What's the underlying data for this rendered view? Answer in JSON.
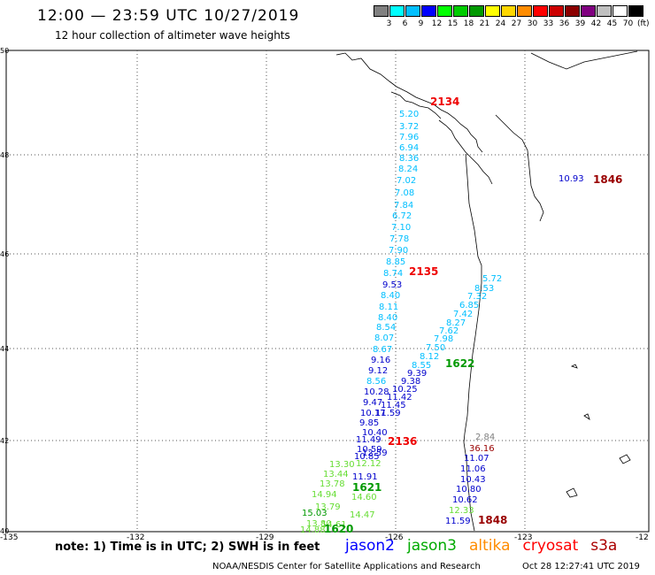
{
  "header": {
    "title": "12:00 — 23:59 UTC 10/27/2019",
    "subtitle": "12 hour collection of altimeter wave heights"
  },
  "legend": {
    "unit": "(ft)",
    "bins": [
      {
        "color": "#808080",
        "label": "3"
      },
      {
        "color": "#00ffff",
        "label": "6"
      },
      {
        "color": "#00bfff",
        "label": "9"
      },
      {
        "color": "#0000ff",
        "label": "12"
      },
      {
        "color": "#00ff00",
        "label": "15"
      },
      {
        "color": "#00cc00",
        "label": "18"
      },
      {
        "color": "#009900",
        "label": "21"
      },
      {
        "color": "#ffff00",
        "label": "24"
      },
      {
        "color": "#ffd700",
        "label": "27"
      },
      {
        "color": "#ff8c00",
        "label": "30"
      },
      {
        "color": "#ff0000",
        "label": "33"
      },
      {
        "color": "#cc0000",
        "label": "36"
      },
      {
        "color": "#8b0000",
        "label": "39"
      },
      {
        "color": "#800080",
        "label": "42"
      },
      {
        "color": "#c0c0c0",
        "label": "45"
      },
      {
        "color": "#ffffff",
        "label": "70"
      },
      {
        "color": "#000000",
        "label": ""
      }
    ]
  },
  "axes": {
    "lat_labels": [
      "50",
      "48",
      "46",
      "44",
      "42",
      "40"
    ],
    "lon_labels": [
      "-135",
      "-132",
      "-129",
      "-126",
      "-123",
      "-12"
    ]
  },
  "observations": [
    {
      "v": "5.20",
      "c": "#00bfff"
    },
    {
      "v": "3.72",
      "c": "#00bfff"
    },
    {
      "v": "7.96",
      "c": "#00bfff"
    },
    {
      "v": "6.94",
      "c": "#00bfff"
    },
    {
      "v": "8.36",
      "c": "#00bfff"
    },
    {
      "v": "8.24",
      "c": "#00bfff"
    },
    {
      "v": "7.02",
      "c": "#00bfff"
    },
    {
      "v": "7.08",
      "c": "#00bfff"
    },
    {
      "v": "7.84",
      "c": "#00bfff"
    },
    {
      "v": "6.72",
      "c": "#00bfff"
    },
    {
      "v": "7.10",
      "c": "#00bfff"
    },
    {
      "v": "7.78",
      "c": "#00bfff"
    },
    {
      "v": "7.90",
      "c": "#00bfff"
    },
    {
      "v": "8.85",
      "c": "#00bfff"
    },
    {
      "v": "8.74",
      "c": "#00bfff"
    },
    {
      "v": "9.53",
      "c": "#0000cc"
    },
    {
      "v": "8.40",
      "c": "#00bfff"
    },
    {
      "v": "8.11",
      "c": "#00bfff"
    },
    {
      "v": "8.40",
      "c": "#00bfff"
    },
    {
      "v": "8.54",
      "c": "#00bfff"
    },
    {
      "v": "8.07",
      "c": "#00bfff"
    },
    {
      "v": "8.67",
      "c": "#00bfff"
    },
    {
      "v": "9.16",
      "c": "#0000cc"
    },
    {
      "v": "9.12",
      "c": "#0000cc"
    },
    {
      "v": "8.56",
      "c": "#00bfff"
    },
    {
      "v": "10.28",
      "c": "#0000cc"
    },
    {
      "v": "9.47",
      "c": "#0000cc"
    },
    {
      "v": "10.17",
      "c": "#0000cc"
    },
    {
      "v": "9.85",
      "c": "#0000cc"
    },
    {
      "v": "10.40",
      "c": "#0000cc"
    },
    {
      "v": "11.49",
      "c": "#0000cc"
    },
    {
      "v": "10.85",
      "c": "#0000cc"
    },
    {
      "v": "11.91",
      "c": "#0000cc"
    },
    {
      "v": "5.72",
      "c": "#00bfff"
    },
    {
      "v": "8.53",
      "c": "#00bfff"
    },
    {
      "v": "7.32",
      "c": "#00bfff"
    },
    {
      "v": "6.85",
      "c": "#00bfff"
    },
    {
      "v": "7.42",
      "c": "#00bfff"
    },
    {
      "v": "8.27",
      "c": "#00bfff"
    },
    {
      "v": "7.62",
      "c": "#00bfff"
    },
    {
      "v": "7.98",
      "c": "#00bfff"
    },
    {
      "v": "7.50",
      "c": "#00bfff"
    },
    {
      "v": "8.12",
      "c": "#00bfff"
    },
    {
      "v": "8.55",
      "c": "#00bfff"
    },
    {
      "v": "9.39",
      "c": "#0000cc"
    },
    {
      "v": "9.38",
      "c": "#0000cc"
    },
    {
      "v": "10.25",
      "c": "#0000cc"
    },
    {
      "v": "11.42",
      "c": "#0000cc"
    },
    {
      "v": "11.45",
      "c": "#0000cc"
    },
    {
      "v": "11.59",
      "c": "#0000cc"
    },
    {
      "v": "10.59",
      "c": "#0000cc"
    },
    {
      "v": "12.59",
      "c": "#0000cc"
    },
    {
      "v": "13.30",
      "c": "#66dd33"
    },
    {
      "v": "12.12",
      "c": "#66dd33"
    },
    {
      "v": "13.44",
      "c": "#66dd33"
    },
    {
      "v": "13.78",
      "c": "#66dd33"
    },
    {
      "v": "14.94",
      "c": "#66dd33"
    },
    {
      "v": "14.60",
      "c": "#66dd33"
    },
    {
      "v": "13.79",
      "c": "#66dd33"
    },
    {
      "v": "15.03",
      "c": "#009900"
    },
    {
      "v": "14.47",
      "c": "#66dd33"
    },
    {
      "v": "13.80",
      "c": "#66dd33"
    },
    {
      "v": "14.61",
      "c": "#66dd33"
    },
    {
      "v": "14.88",
      "c": "#66dd33"
    },
    {
      "v": "2.84",
      "c": "#808080"
    },
    {
      "v": "36.16",
      "c": "#990000"
    },
    {
      "v": "11.07",
      "c": "#0000cc"
    },
    {
      "v": "11.06",
      "c": "#0000cc"
    },
    {
      "v": "10.43",
      "c": "#0000cc"
    },
    {
      "v": "10.80",
      "c": "#0000cc"
    },
    {
      "v": "10.62",
      "c": "#0000cc"
    },
    {
      "v": "12.33",
      "c": "#66dd33"
    },
    {
      "v": "11.59",
      "c": "#0000cc"
    },
    {
      "v": "10.93",
      "c": "#0000cc"
    }
  ],
  "pass_labels": [
    {
      "text": "2134",
      "c": "#ee0000"
    },
    {
      "text": "2135",
      "c": "#ee0000"
    },
    {
      "text": "2136",
      "c": "#ee0000"
    },
    {
      "text": "1622",
      "c": "#009900"
    },
    {
      "text": "1621",
      "c": "#009900"
    },
    {
      "text": "1620",
      "c": "#009900"
    },
    {
      "text": "1848",
      "c": "#990000"
    },
    {
      "text": "1846",
      "c": "#990000"
    }
  ],
  "notes": {
    "text": "note:  1) Time is in UTC;  2) SWH is in feet"
  },
  "satellites": [
    {
      "name": "jason2",
      "color": "#0000ff"
    },
    {
      "name": "jason3",
      "color": "#00aa00"
    },
    {
      "name": "altika",
      "color": "#ff8c00"
    },
    {
      "name": "cryosat",
      "color": "#ff0000"
    },
    {
      "name": "s3a",
      "color": "#aa0000"
    }
  ],
  "footer": {
    "credit": "NOAA/NESDIS Center for Satellite Applications and Research",
    "timestamp": "Oct 28 12:27:41 UTC 2019"
  }
}
